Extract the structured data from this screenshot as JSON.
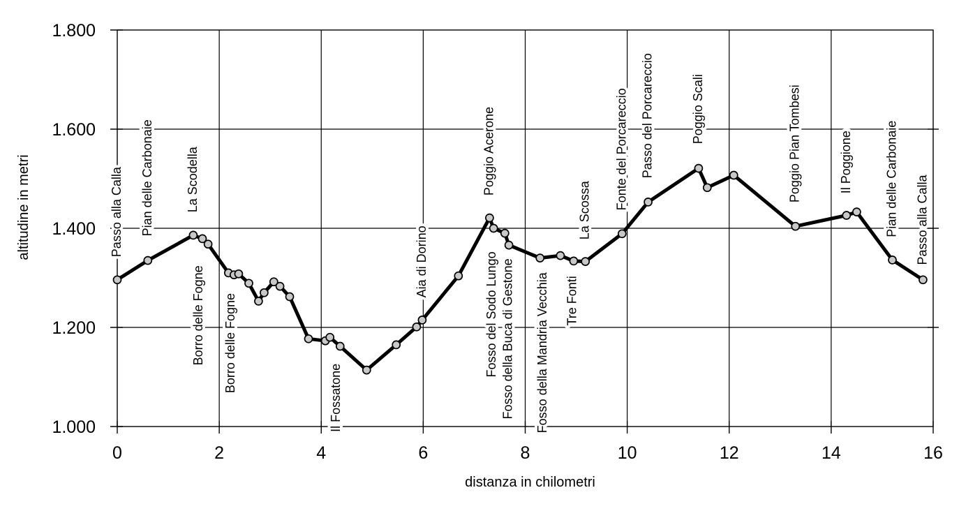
{
  "chart_data": {
    "type": "line",
    "title": "",
    "xlabel": "distanza in chilometri",
    "ylabel": "altitudine  in metri",
    "xlim": [
      0,
      16
    ],
    "ylim": [
      1000,
      1800
    ],
    "grid": true,
    "legend": "none",
    "colors": {
      "background": "#ffffff",
      "line": "#000000",
      "grid": "#000000",
      "border": "#000000",
      "marker_fill": "#c8c8c8",
      "marker_stroke": "#000000",
      "text": "#000000"
    },
    "x_axis": {
      "title": "distanza in chilometri",
      "ticks": [
        {
          "v": 0,
          "label": "0"
        },
        {
          "v": 2,
          "label": "2"
        },
        {
          "v": 4,
          "label": "4"
        },
        {
          "v": 6,
          "label": "6"
        },
        {
          "v": 8,
          "label": "8"
        },
        {
          "v": 10,
          "label": "10"
        },
        {
          "v": 12,
          "label": "12"
        },
        {
          "v": 14,
          "label": "14"
        },
        {
          "v": 16,
          "label": "16"
        }
      ]
    },
    "y_axis": {
      "title": "altitudine  in metri",
      "ticks": [
        {
          "v": 1000,
          "label": "1.000"
        },
        {
          "v": 1200,
          "label": "1.200"
        },
        {
          "v": 1400,
          "label": "1.400"
        },
        {
          "v": 1600,
          "label": "1.600"
        },
        {
          "v": 1800,
          "label": "1.800"
        }
      ]
    },
    "points": [
      {
        "km": 0.0,
        "alt": 1296,
        "label": "Passo alla Calla",
        "side": "above",
        "label_alt": 1342
      },
      {
        "km": 0.6,
        "alt": 1335,
        "label": "Pian delle Carbonaie",
        "side": "above",
        "label_alt": 1384
      },
      {
        "km": 1.49,
        "alt": 1386,
        "label": "La Scodella",
        "side": "above",
        "label_alt": 1432
      },
      {
        "km": 1.67,
        "alt": 1379
      },
      {
        "km": 1.78,
        "alt": 1368
      },
      {
        "km": 2.18,
        "alt": 1310,
        "label": "Borro delle Fogne",
        "side": "below",
        "label_alt": 1325,
        "label_km": 1.6
      },
      {
        "km": 2.29,
        "alt": 1306
      },
      {
        "km": 2.38,
        "alt": 1308
      },
      {
        "km": 2.58,
        "alt": 1289
      },
      {
        "km": 2.77,
        "alt": 1253,
        "label": "Borro delle Fogne",
        "side": "below",
        "label_alt": 1269,
        "label_km": 2.23
      },
      {
        "km": 2.88,
        "alt": 1270
      },
      {
        "km": 3.07,
        "alt": 1292
      },
      {
        "km": 3.19,
        "alt": 1283
      },
      {
        "km": 3.38,
        "alt": 1262
      },
      {
        "km": 3.75,
        "alt": 1177
      },
      {
        "km": 4.08,
        "alt": 1173
      },
      {
        "km": 4.17,
        "alt": 1180
      },
      {
        "km": 4.37,
        "alt": 1162
      },
      {
        "km": 4.89,
        "alt": 1114,
        "label": "Il Fossatone",
        "side": "below",
        "label_alt": 1127,
        "label_km": 4.3
      },
      {
        "km": 5.47,
        "alt": 1165
      },
      {
        "km": 5.87,
        "alt": 1201
      },
      {
        "km": 5.98,
        "alt": 1215,
        "label": "Aia di Dorino",
        "side": "above",
        "label_alt": 1260
      },
      {
        "km": 6.69,
        "alt": 1304
      },
      {
        "km": 7.3,
        "alt": 1421,
        "label": "Poggio Acerone",
        "side": "above",
        "label_alt": 1466
      },
      {
        "km": 7.38,
        "alt": 1400,
        "label": "Fosso del Sodo Lungo",
        "side": "below",
        "label_alt": 1353,
        "label_km": 7.35
      },
      {
        "km": 7.6,
        "alt": 1390
      },
      {
        "km": 7.68,
        "alt": 1366,
        "label": "Fosso della Buca di Gestone",
        "side": "below",
        "label_alt": 1339,
        "label_km": 7.67
      },
      {
        "km": 8.29,
        "alt": 1340,
        "label": "Fosso della Mandria Vecchia",
        "side": "below",
        "label_alt": 1311,
        "label_km": 8.35
      },
      {
        "km": 8.69,
        "alt": 1345
      },
      {
        "km": 8.95,
        "alt": 1334,
        "label": "Tre Fonti",
        "side": "below",
        "label_alt": 1304,
        "label_km": 8.93
      },
      {
        "km": 9.18,
        "alt": 1333,
        "label": "La Scossa",
        "side": "above",
        "label_alt": 1377
      },
      {
        "km": 9.9,
        "alt": 1389,
        "label": "Fonte del Porcareccio",
        "side": "above",
        "label_alt": 1436
      },
      {
        "km": 10.41,
        "alt": 1453,
        "label": "Passo del Porcareccio",
        "side": "above",
        "label_alt": 1501
      },
      {
        "km": 11.4,
        "alt": 1521,
        "label": "Poggio Scali",
        "side": "above",
        "label_alt": 1570
      },
      {
        "km": 11.57,
        "alt": 1482
      },
      {
        "km": 12.09,
        "alt": 1507
      },
      {
        "km": 13.3,
        "alt": 1404,
        "label": "Poggio Pian Tombesi",
        "side": "above",
        "label_alt": 1452
      },
      {
        "km": 14.3,
        "alt": 1426,
        "label": "Il Poggione",
        "side": "above",
        "label_alt": 1470
      },
      {
        "km": 14.5,
        "alt": 1433
      },
      {
        "km": 15.2,
        "alt": 1336,
        "label": "Pian delle Carbonaie",
        "side": "above",
        "label_alt": 1382
      },
      {
        "km": 15.8,
        "alt": 1296,
        "label": "Passo alla Calla",
        "side": "above",
        "label_alt": 1326
      }
    ]
  }
}
